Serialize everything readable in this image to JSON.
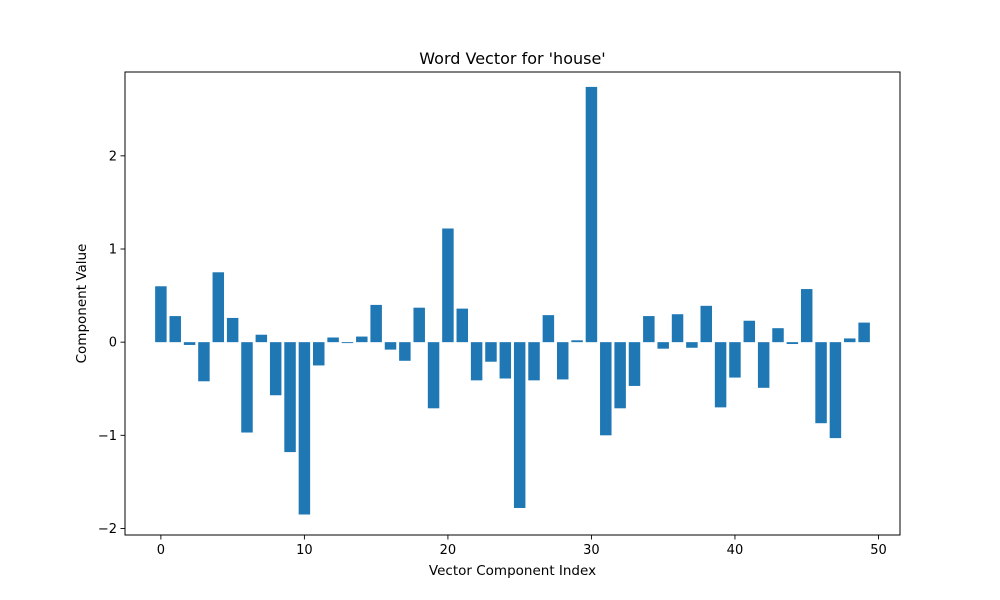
{
  "colors": {
    "bar": "#1f77b4",
    "axis": "#000000",
    "background": "#ffffff"
  },
  "chart_data": {
    "type": "bar",
    "title": "Word Vector for 'house'",
    "xlabel": "Vector Component Index",
    "ylabel": "Component Value",
    "xlim": [
      -2.5,
      51.5
    ],
    "ylim": [
      -2.07,
      2.9
    ],
    "grid": false,
    "x_ticks": [
      0,
      10,
      20,
      30,
      40,
      50
    ],
    "x_tick_labels": [
      "0",
      "10",
      "20",
      "30",
      "40",
      "50"
    ],
    "y_ticks": [
      -2,
      -1,
      0,
      1,
      2
    ],
    "y_tick_labels": [
      "−2",
      "−1",
      "0",
      "1",
      "2"
    ],
    "categories": [
      0,
      1,
      2,
      3,
      4,
      5,
      6,
      7,
      8,
      9,
      10,
      11,
      12,
      13,
      14,
      15,
      16,
      17,
      18,
      19,
      20,
      21,
      22,
      23,
      24,
      25,
      26,
      27,
      28,
      29,
      30,
      31,
      32,
      33,
      34,
      35,
      36,
      37,
      38,
      39,
      40,
      41,
      42,
      43,
      44,
      45,
      46,
      47,
      48,
      49
    ],
    "values": [
      0.6,
      0.28,
      -0.03,
      -0.42,
      0.75,
      0.26,
      -0.97,
      0.08,
      -0.57,
      -1.18,
      -1.85,
      -0.25,
      0.05,
      -0.01,
      0.06,
      0.4,
      -0.08,
      -0.2,
      0.37,
      -0.71,
      1.22,
      0.36,
      -0.41,
      -0.21,
      -0.39,
      -1.78,
      -0.41,
      0.29,
      -0.4,
      0.02,
      2.74,
      -1.0,
      -0.71,
      -0.47,
      0.28,
      -0.07,
      0.3,
      -0.06,
      0.39,
      -0.7,
      -0.38,
      0.23,
      -0.49,
      0.15,
      -0.02,
      0.57,
      -0.87,
      -1.03,
      0.04,
      0.21
    ]
  }
}
